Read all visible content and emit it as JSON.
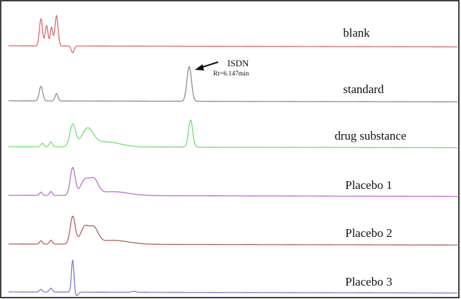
{
  "chart_data": {
    "type": "line",
    "title": "",
    "xlabel": "",
    "ylabel": "",
    "grid": false,
    "legend": "none",
    "series": [
      {
        "name": "blank",
        "color": "#d96a6a",
        "peaks": [
          {
            "x": 58,
            "h": 0.8,
            "w": 2.2
          },
          {
            "x": 66,
            "h": 0.6,
            "w": 2.0
          },
          {
            "x": 73,
            "h": 0.55,
            "w": 1.8
          },
          {
            "x": 80,
            "h": 0.9,
            "w": 2.2
          },
          {
            "x": 103,
            "h": -0.2,
            "w": 2.0
          }
        ]
      },
      {
        "name": "standard",
        "color": "#8c8c8c",
        "peaks": [
          {
            "x": 58,
            "h": 0.4,
            "w": 2.5
          },
          {
            "x": 80,
            "h": 0.2,
            "w": 2.0
          },
          {
            "x": 268,
            "h": 0.95,
            "w": 3.2
          }
        ]
      },
      {
        "name": "drug substance",
        "color": "#6ee06e",
        "peaks": [
          {
            "x": 60,
            "h": 0.1,
            "w": 2.0
          },
          {
            "x": 72,
            "h": 0.15,
            "w": 2.0
          },
          {
            "x": 103,
            "h": 0.65,
            "w": 4.0
          },
          {
            "x": 124,
            "h": 0.5,
            "w": 8.0
          },
          {
            "x": 150,
            "h": 0.15,
            "w": 20.0
          },
          {
            "x": 270,
            "h": 0.8,
            "w": 3.0
          }
        ]
      },
      {
        "name": "Placebo 1",
        "color": "#c06ad0",
        "peaks": [
          {
            "x": 58,
            "h": 0.1,
            "w": 2.0
          },
          {
            "x": 72,
            "h": 0.12,
            "w": 2.0
          },
          {
            "x": 103,
            "h": 0.85,
            "w": 3.5
          },
          {
            "x": 120,
            "h": 0.45,
            "w": 6.0
          },
          {
            "x": 133,
            "h": 0.45,
            "w": 6.0
          },
          {
            "x": 160,
            "h": 0.12,
            "w": 22.0
          }
        ]
      },
      {
        "name": "Placebo 2",
        "color": "#b0605a",
        "peaks": [
          {
            "x": 58,
            "h": 0.1,
            "w": 2.0
          },
          {
            "x": 72,
            "h": 0.12,
            "w": 2.0
          },
          {
            "x": 103,
            "h": 0.85,
            "w": 3.5
          },
          {
            "x": 120,
            "h": 0.5,
            "w": 6.0
          },
          {
            "x": 133,
            "h": 0.45,
            "w": 6.0
          },
          {
            "x": 160,
            "h": 0.12,
            "w": 22.0
          }
        ]
      },
      {
        "name": "Placebo 3",
        "color": "#7a7ad6",
        "peaks": [
          {
            "x": 58,
            "h": 0.08,
            "w": 2.0
          },
          {
            "x": 72,
            "h": 0.12,
            "w": 2.0
          },
          {
            "x": 103,
            "h": 1.0,
            "w": 1.8
          },
          {
            "x": 108,
            "h": -0.12,
            "w": 2.5
          },
          {
            "x": 190,
            "h": 0.03,
            "w": 3.0
          }
        ]
      }
    ],
    "x_range": [
      0,
      653
    ],
    "annotation": {
      "series": "standard",
      "x": 268,
      "name": "ISDN",
      "rt": "Rt=6.147min"
    }
  }
}
